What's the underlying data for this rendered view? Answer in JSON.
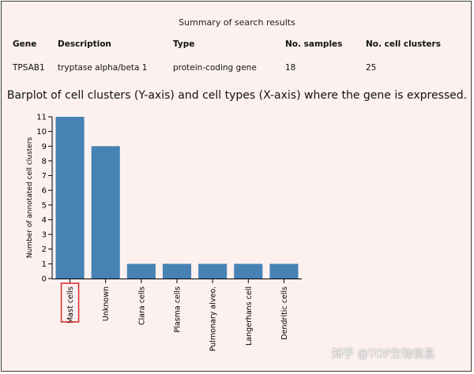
{
  "summary": {
    "title": "Summary of search results",
    "headers": [
      "Gene",
      "Description",
      "Type",
      "No. samples",
      "No. cell clusters"
    ],
    "row": [
      "TPSAB1",
      "tryptase alpha/beta 1",
      "protein-coding gene",
      "18",
      "25"
    ]
  },
  "chart_data": {
    "type": "bar",
    "title": "Barplot of cell clusters (Y-axis) and cell types (X-axis) where the gene is expressed.",
    "xlabel": "",
    "ylabel": "Number of annotated cell clusters",
    "categories": [
      "Mast cells",
      "Unknown",
      "Clara cells",
      "Plasma cells",
      "Pulmonary alveo.",
      "Langerhans cell",
      "Dendritic cells"
    ],
    "values": [
      11,
      9,
      1,
      1,
      1,
      1,
      1
    ],
    "ylim": [
      0,
      11
    ],
    "yticks": [
      0,
      1,
      2,
      3,
      4,
      5,
      6,
      7,
      8,
      9,
      10,
      11
    ],
    "bar_color": "#4682b4",
    "highlight_category": "Mast cells",
    "highlight_color": "#d62728",
    "grid": false
  },
  "watermark": "知乎 @TOP生物信息"
}
